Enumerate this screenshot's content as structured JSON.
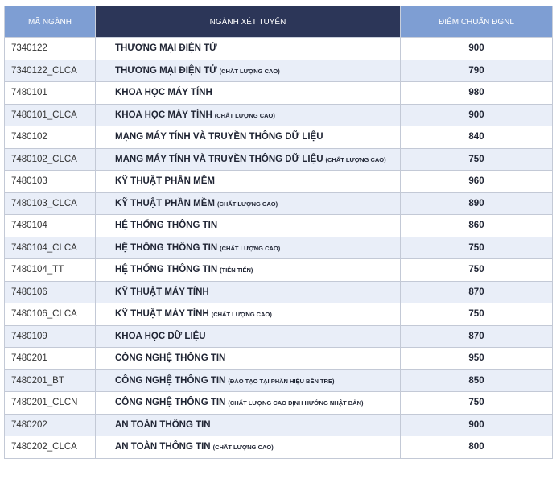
{
  "table": {
    "headers": [
      "MÃ NGÀNH",
      "NGÀNH XÉT TUYỂN",
      "ĐIỂM CHUẨN ĐGNL"
    ],
    "rows": [
      {
        "code": "7340122",
        "name": "THƯƠNG MẠI ĐIỆN TỬ",
        "score": 900
      },
      {
        "code": "7340122_CLCA",
        "name": "THƯƠNG MẠI ĐIỆN TỬ",
        "note": "(CHẤT LƯỢNG CAO)",
        "score": 790
      },
      {
        "code": "7480101",
        "name": "KHOA HỌC MÁY TÍNH",
        "score": 980
      },
      {
        "code": "7480101_CLCA",
        "name": "KHOA HỌC MÁY TÍNH",
        "note": "(CHẤT LƯỢNG CAO)",
        "score": 900
      },
      {
        "code": "7480102",
        "name": "MẠNG MÁY TÍNH VÀ TRUYỀN THÔNG DỮ LIỆU",
        "score": 840
      },
      {
        "code": "7480102_CLCA",
        "name": "MẠNG MÁY TÍNH VÀ TRUYỀN THÔNG DỮ LIỆU",
        "note": "(CHẤT LƯỢNG CAO)",
        "score": 750
      },
      {
        "code": "7480103",
        "name": "KỸ THUẬT PHẦN MỀM",
        "score": 960
      },
      {
        "code": "7480103_CLCA",
        "name": "KỸ THUẬT PHẦN MỀM",
        "note": "(CHẤT LƯỢNG CAO)",
        "score": 890
      },
      {
        "code": "7480104",
        "name": "HỆ THỐNG THÔNG TIN",
        "score": 860
      },
      {
        "code": "7480104_CLCA",
        "name": "HỆ THỐNG THÔNG TIN",
        "note": "(CHẤT LƯỢNG CAO)",
        "score": 750
      },
      {
        "code": "7480104_TT",
        "name": "HỆ THỐNG THÔNG TIN",
        "note": "(TIÊN TIẾN)",
        "score": 750
      },
      {
        "code": "7480106",
        "name": "KỸ THUẬT MÁY TÍNH",
        "score": 870
      },
      {
        "code": "7480106_CLCA",
        "name": "KỸ THUẬT MÁY TÍNH",
        "note": "(CHẤT LƯỢNG CAO)",
        "score": 750
      },
      {
        "code": "7480109",
        "name": "KHOA HỌC DỮ LIỆU",
        "score": 870
      },
      {
        "code": "7480201",
        "name": "CÔNG NGHỆ THÔNG TIN",
        "score": 950
      },
      {
        "code": "7480201_BT",
        "name": "CÔNG NGHỆ THÔNG TIN",
        "note": "(ĐÀO TẠO TẠI PHÂN HIỆU BẾN TRE)",
        "score": 850
      },
      {
        "code": "7480201_CLCN",
        "name": "CÔNG NGHỆ THÔNG TIN",
        "note": "(CHẤT LƯỢNG CAO ĐỊNH HƯỚNG NHẬT BẢN)",
        "score": 750
      },
      {
        "code": "7480202",
        "name": "AN TOÀN THÔNG TIN",
        "score": 900
      },
      {
        "code": "7480202_CLCA",
        "name": "AN TOÀN THÔNG TIN",
        "note": "(CHẤT LƯỢNG CAO)",
        "score": 800
      }
    ]
  }
}
